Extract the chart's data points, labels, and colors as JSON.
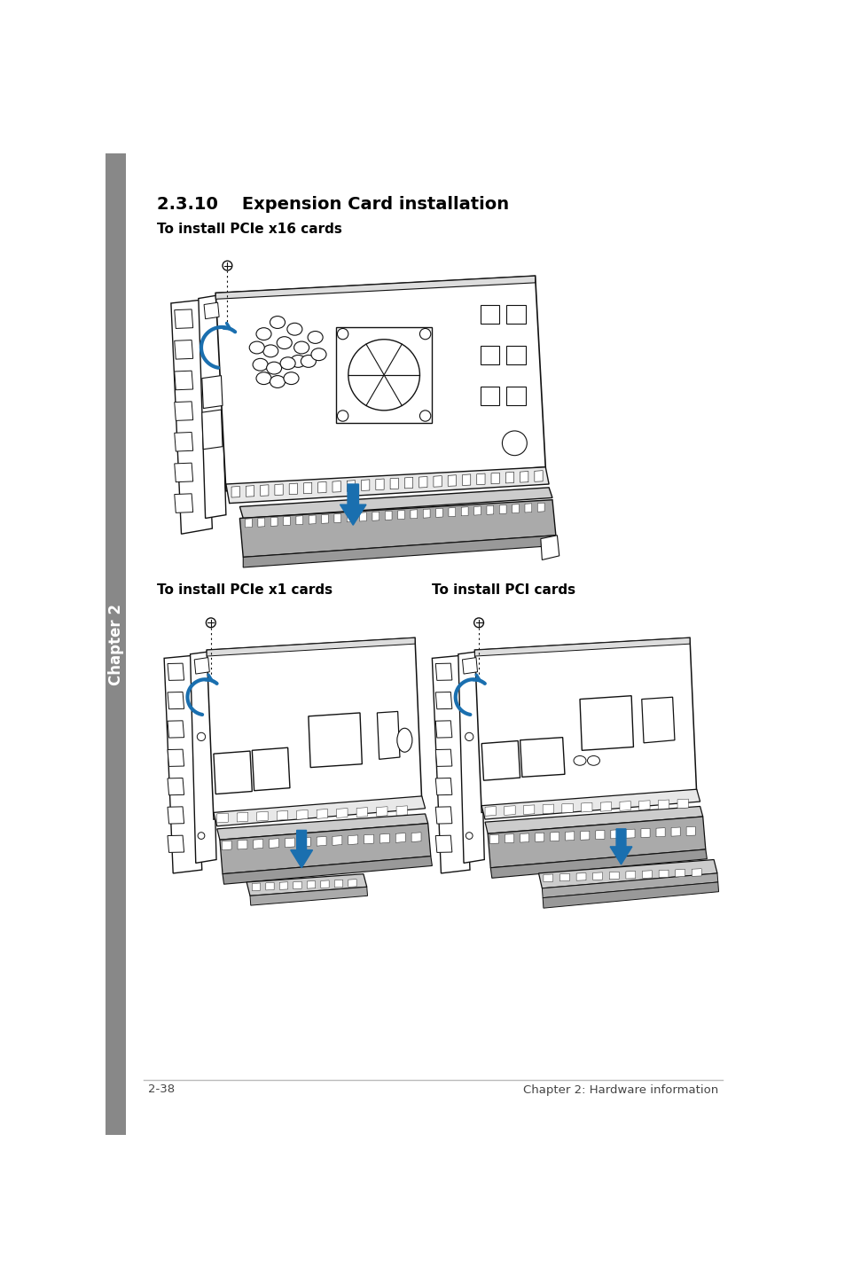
{
  "title": "2.3.10    Expension Card installation",
  "subtitle1": "To install PCIe x16 cards",
  "subtitle2": "To install PCIe x1 cards",
  "subtitle3": "To install PCI cards",
  "footer_left": "2-38",
  "footer_right": "Chapter 2: Hardware information",
  "sidebar_text": "Chapter 2",
  "bg_color": "#ffffff",
  "sidebar_color": "#888888",
  "text_color": "#000000",
  "blue_color": "#1a6faf",
  "line_color": "#bbbbbb",
  "dark_color": "#111111"
}
